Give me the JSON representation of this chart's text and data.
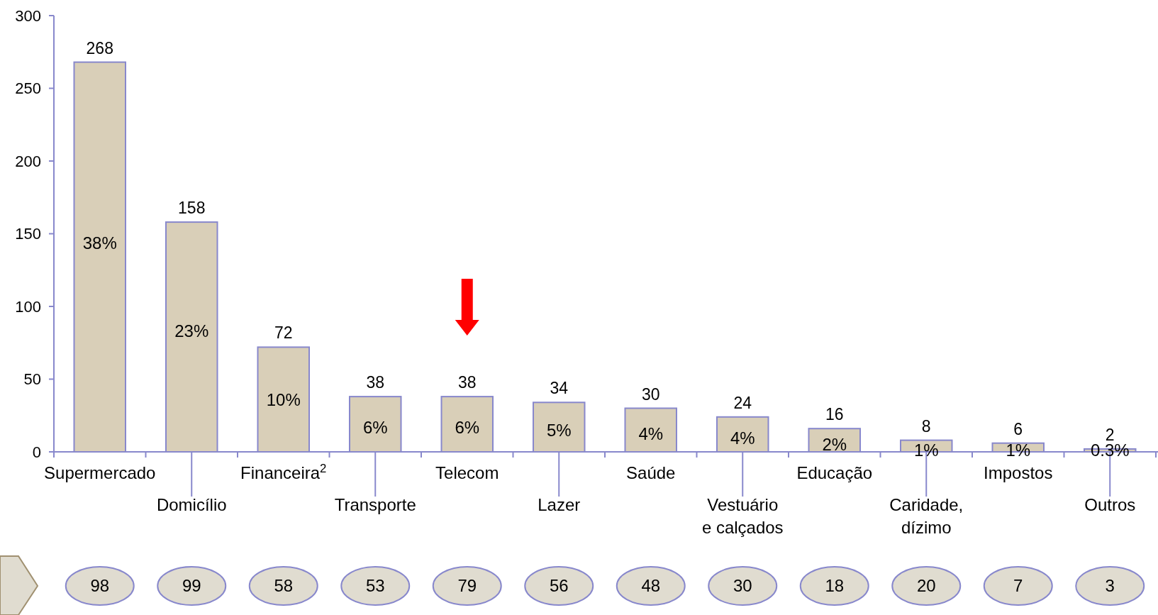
{
  "chart_data": {
    "type": "bar",
    "categories": [
      "Supermercado",
      "Domicílio",
      "Financeira$^{2}$",
      "Transporte",
      "Telecom",
      "Lazer",
      "Saúde",
      "Vestuário\ne calçados",
      "Educação",
      "Caridade,\ndízimo",
      "Impostos",
      "Outros"
    ],
    "values": [
      268,
      158,
      72,
      38,
      38,
      34,
      30,
      24,
      16,
      8,
      6,
      2
    ],
    "color": "#d9cfb8",
    "ylim": [
      0,
      300
    ],
    "yticks": [
      0,
      50,
      100,
      150,
      200,
      250,
      300
    ],
    "data_labels": true,
    "annotations": [
      "38%",
      "23%",
      "10%",
      "6%",
      "6%",
      "5%",
      "4%",
      "4%",
      "2%",
      "1%",
      "1%",
      "0.3%",
      "98",
      "99",
      "58",
      "53",
      "79",
      "56",
      "48",
      "30",
      "18",
      "20",
      "7",
      "3"
    ]
  }
}
